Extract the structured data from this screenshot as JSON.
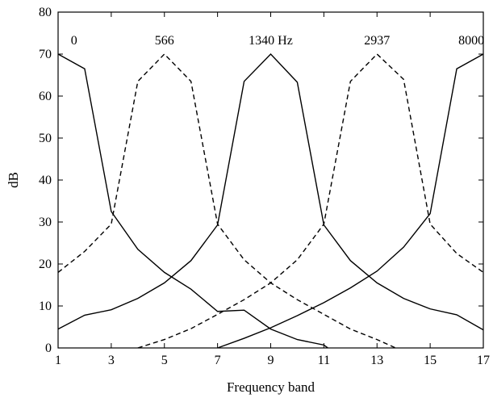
{
  "chart_data": {
    "type": "line",
    "xlabel": "Frequency band",
    "ylabel": "dB",
    "xlim": [
      1,
      17
    ],
    "ylim": [
      0,
      80
    ],
    "xticks": [
      1,
      3,
      5,
      7,
      9,
      11,
      13,
      15,
      17
    ],
    "yticks": [
      0,
      10,
      20,
      30,
      40,
      50,
      60,
      70,
      80
    ],
    "grid": false,
    "series": [
      {
        "label": "0",
        "style": "solid",
        "points": [
          [
            1,
            70
          ],
          [
            2,
            66.5
          ],
          [
            3,
            32.5
          ],
          [
            4,
            23.5
          ],
          [
            5,
            18
          ],
          [
            6,
            14
          ],
          [
            7,
            8.7
          ],
          [
            8,
            9
          ],
          [
            9,
            4.5
          ],
          [
            10,
            2
          ],
          [
            11,
            0.7
          ],
          [
            11.15,
            0
          ]
        ]
      },
      {
        "label": "566",
        "style": "dashed",
        "points": [
          [
            1,
            18
          ],
          [
            2,
            23
          ],
          [
            3,
            29.5
          ],
          [
            4,
            63.5
          ],
          [
            5,
            70
          ],
          [
            6,
            63.5
          ],
          [
            7,
            29.5
          ],
          [
            8,
            21
          ],
          [
            9,
            15.5
          ],
          [
            10,
            11.5
          ],
          [
            11,
            8
          ],
          [
            12,
            4.5
          ],
          [
            13,
            2
          ],
          [
            13.7,
            0
          ]
        ]
      },
      {
        "label": "1340 Hz",
        "style": "solid",
        "points": [
          [
            1,
            4.5
          ],
          [
            2,
            7.8
          ],
          [
            3,
            9.1
          ],
          [
            4,
            11.8
          ],
          [
            5,
            15.5
          ],
          [
            6,
            20.8
          ],
          [
            7,
            29.3
          ],
          [
            8,
            63.5
          ],
          [
            9,
            70
          ],
          [
            10,
            63.3
          ],
          [
            11,
            29.3
          ],
          [
            12,
            20.8
          ],
          [
            13,
            15.5
          ],
          [
            14,
            11.8
          ],
          [
            15,
            9.3
          ],
          [
            16,
            7.9
          ],
          [
            17,
            4.3
          ]
        ]
      },
      {
        "label": "2937",
        "style": "dashed",
        "points": [
          [
            4,
            0
          ],
          [
            5,
            2
          ],
          [
            6,
            4.6
          ],
          [
            7,
            8
          ],
          [
            8,
            11.5
          ],
          [
            9,
            15.5
          ],
          [
            10,
            21
          ],
          [
            11,
            29.5
          ],
          [
            12,
            63.5
          ],
          [
            13,
            70
          ],
          [
            14,
            64
          ],
          [
            15,
            29.5
          ],
          [
            16,
            22.5
          ],
          [
            17,
            18
          ]
        ]
      },
      {
        "label": "8000",
        "style": "solid",
        "points": [
          [
            7,
            0
          ],
          [
            8,
            2.3
          ],
          [
            9,
            4.8
          ],
          [
            10,
            7.7
          ],
          [
            11,
            10.8
          ],
          [
            12,
            14.3
          ],
          [
            13,
            18.3
          ],
          [
            14,
            24
          ],
          [
            15,
            32
          ],
          [
            16,
            66.5
          ],
          [
            17,
            70
          ]
        ]
      }
    ],
    "annotations": [
      {
        "text": "0",
        "x": 1.6,
        "y": 72.3
      },
      {
        "text": "566",
        "x": 5,
        "y": 72.3
      },
      {
        "text": "1340 Hz",
        "x": 9,
        "y": 72.3
      },
      {
        "text": "2937",
        "x": 13,
        "y": 72.3
      },
      {
        "text": "8000",
        "x": 16.55,
        "y": 72.3
      }
    ]
  }
}
